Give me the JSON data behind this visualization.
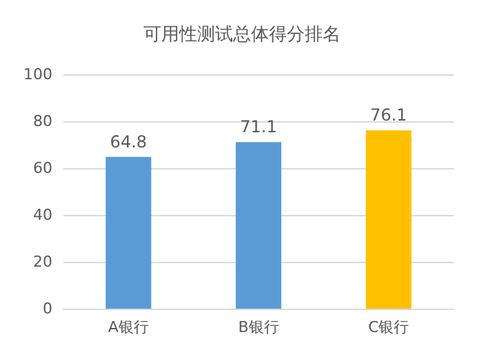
{
  "chart_data": {
    "type": "bar",
    "title": "可用性测试总体得分排名",
    "categories": [
      "A银行",
      "B银行",
      "C银行"
    ],
    "values": [
      64.8,
      71.1,
      76.1
    ],
    "colors": [
      "#5b9bd5",
      "#5b9bd5",
      "#ffc000"
    ],
    "ylim": [
      0,
      100
    ],
    "yticks": [
      0,
      20,
      40,
      60,
      80,
      100
    ],
    "grid": "y",
    "data_labels": true
  }
}
